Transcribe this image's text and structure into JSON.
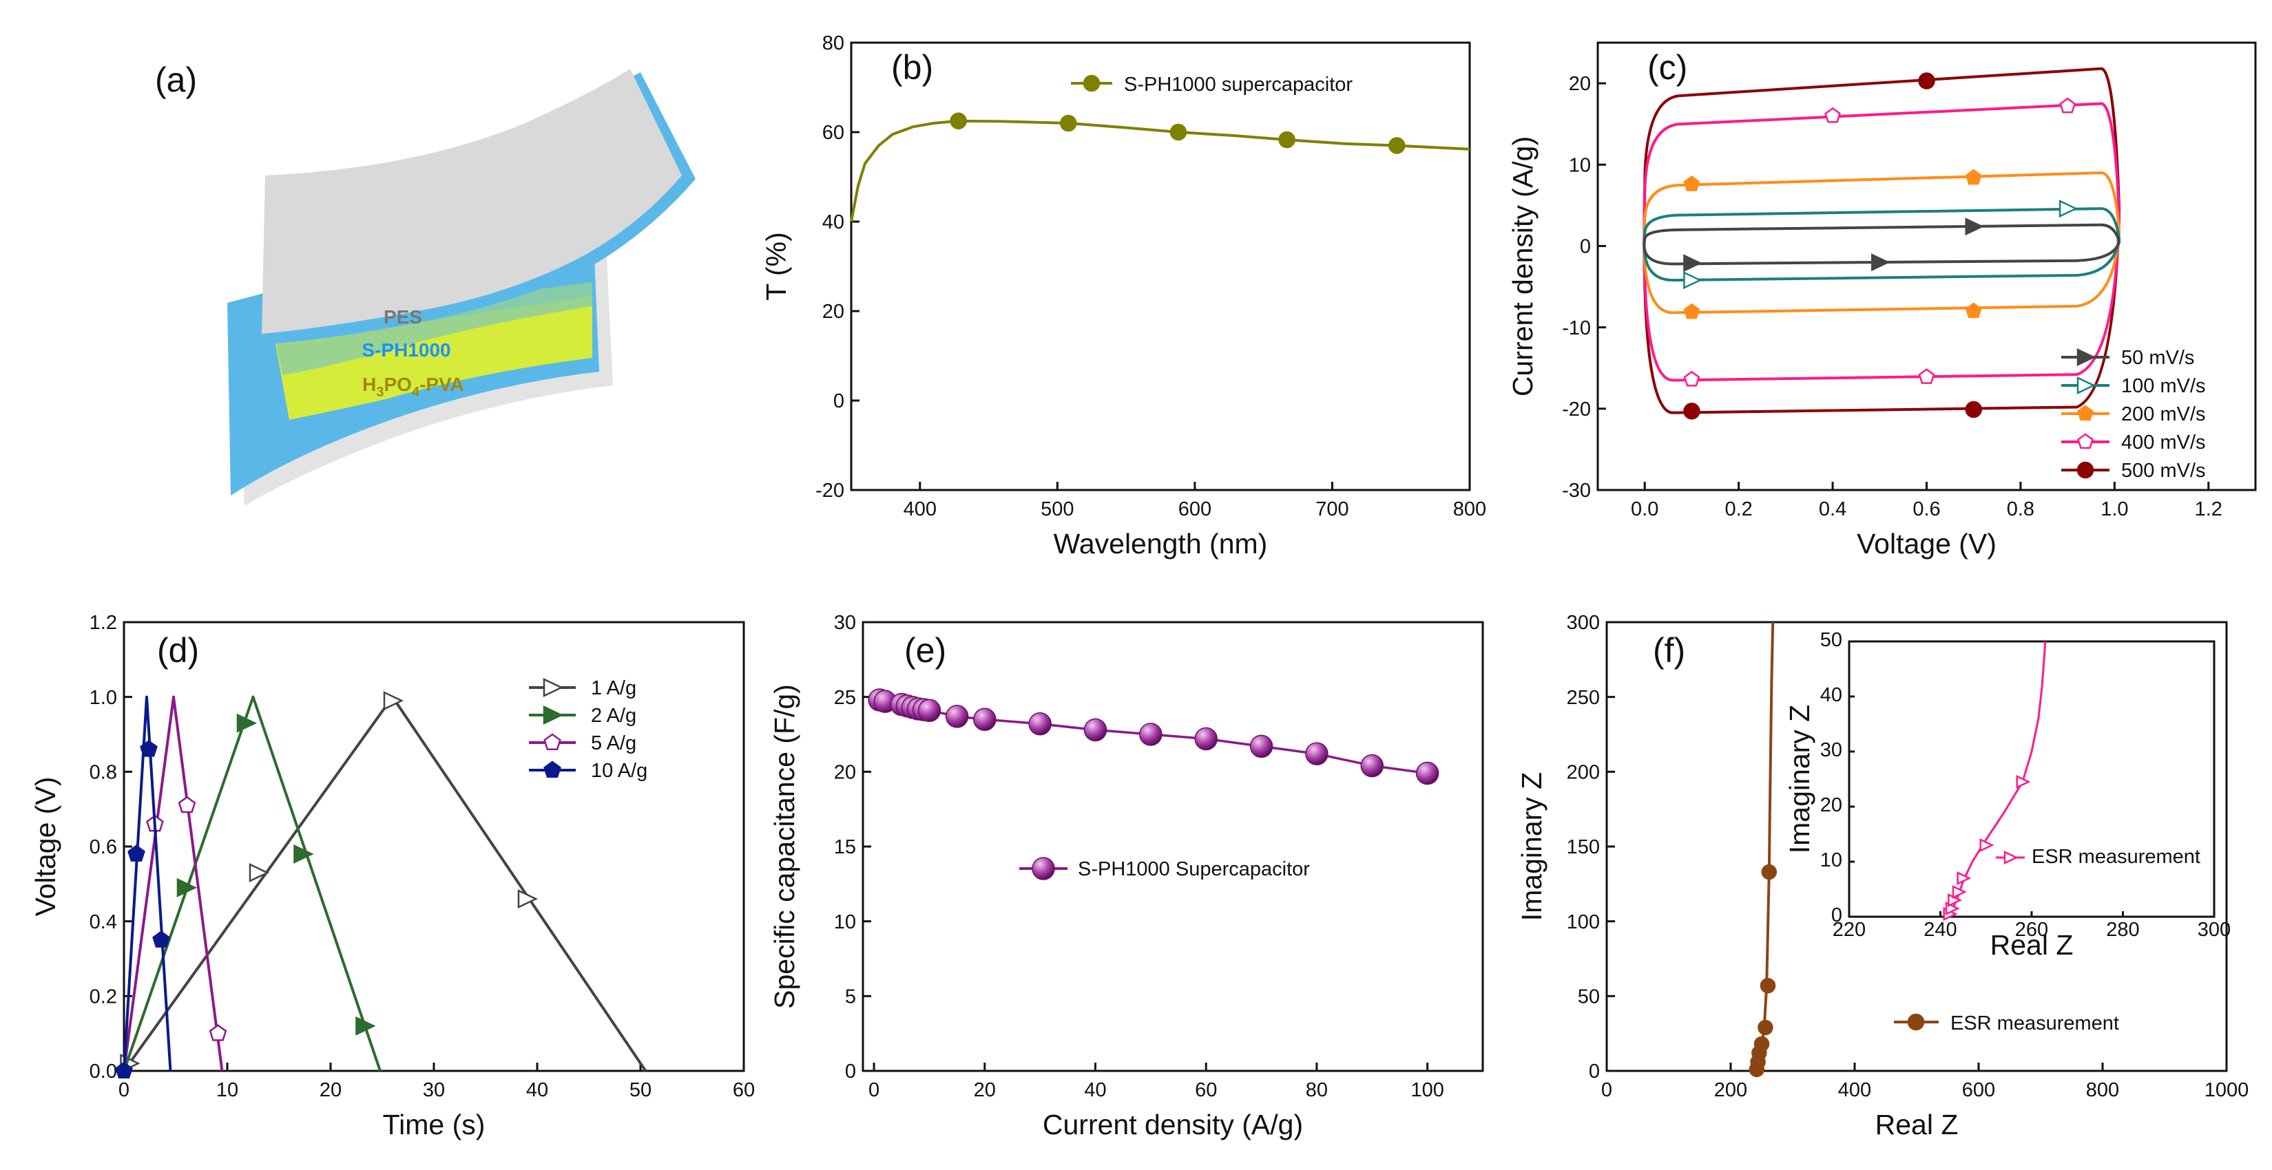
{
  "figure": {
    "panel_a": {
      "label": "(a)",
      "layers": [
        "PES",
        "S-PH1000",
        "H3PO4-PVA"
      ],
      "colors": {
        "pes": "#d9d9d9",
        "sph": "#5ab8e8",
        "elec": "#d6ec3a",
        "sph_text": "#1e90ff",
        "elec_text": "#a08a00",
        "pes_text": "#777777"
      }
    }
  },
  "chart_data": [
    {
      "panel": "b",
      "type": "line",
      "label": "(b)",
      "xlabel": "Wavelength (nm)",
      "ylabel": "T (%)",
      "xlim": [
        350,
        800
      ],
      "ylim": [
        -20,
        80
      ],
      "xticks": [
        400,
        500,
        600,
        700,
        800
      ],
      "yticks": [
        -20,
        0,
        20,
        40,
        60,
        80
      ],
      "legend": {
        "position": "top-right",
        "entries": [
          "S-PH1000 supercapacitor"
        ]
      },
      "series": [
        {
          "name": "S-PH1000 supercapacitor",
          "color": "#808000",
          "marker": "circle",
          "x": [
            350,
            355,
            360,
            370,
            380,
            395,
            410,
            428,
            460,
            508,
            550,
            588,
            630,
            667,
            710,
            747,
            780,
            800
          ],
          "y": [
            40,
            48,
            53,
            57,
            59.5,
            61.2,
            62,
            62.5,
            62.4,
            62,
            61,
            60,
            59.2,
            58.3,
            57.4,
            57,
            56.5,
            56.2
          ],
          "markers_x": [
            428,
            508,
            588,
            667,
            747
          ],
          "markers_y": [
            62.5,
            62,
            60,
            58.3,
            57
          ]
        }
      ]
    },
    {
      "panel": "c",
      "type": "line",
      "label": "(c)",
      "xlabel": "Voltage (V)",
      "ylabel": "Current density (A/g)",
      "xlim": [
        -0.1,
        1.3
      ],
      "ylim": [
        -30,
        25
      ],
      "xticks": [
        0.0,
        0.2,
        0.4,
        0.6,
        0.8,
        1.0,
        1.2
      ],
      "xticklabels": [
        "0.0",
        "0.2",
        "0.4",
        "0.6",
        "0.8",
        "1.0",
        "1.2"
      ],
      "yticks": [
        -30,
        -20,
        -10,
        0,
        10,
        20
      ],
      "legend": {
        "position": "bottom-right",
        "entries": [
          "50 mV/s",
          "100 mV/s",
          "200 mV/s",
          "400 mV/s",
          "500 mV/s"
        ]
      },
      "series": [
        {
          "name": "50 mV/s",
          "color": "#444444",
          "marker": "triangle-right-filled",
          "top": [
            2.0,
            2.6
          ],
          "bottom": [
            -2.2,
            -1.8
          ],
          "markers": [
            [
              0.7,
              2.4
            ],
            [
              0.1,
              -2.1
            ],
            [
              0.5,
              -2.0
            ]
          ]
        },
        {
          "name": "100 mV/s",
          "color": "#1a8080",
          "marker": "triangle-right-open",
          "top": [
            3.8,
            4.6
          ],
          "bottom": [
            -4.2,
            -3.6
          ],
          "markers": [
            [
              0.9,
              4.6
            ],
            [
              0.1,
              -4.2
            ]
          ]
        },
        {
          "name": "200 mV/s",
          "color": "#ff8c1a",
          "marker": "pentagon-filled",
          "top": [
            7.5,
            9.0
          ],
          "bottom": [
            -8.2,
            -7.4
          ],
          "markers": [
            [
              0.1,
              7.6
            ],
            [
              0.7,
              8.4
            ],
            [
              0.1,
              -8.1
            ],
            [
              0.7,
              -8.0
            ]
          ]
        },
        {
          "name": "400 mV/s",
          "color": "#ff1a8c",
          "marker": "pentagon-open",
          "top": [
            15.0,
            17.5
          ],
          "bottom": [
            -16.5,
            -15.8
          ],
          "markers": [
            [
              0.4,
              16.0
            ],
            [
              0.9,
              17.2
            ],
            [
              0.1,
              -16.4
            ],
            [
              0.6,
              -16.1
            ]
          ]
        },
        {
          "name": "500 mV/s",
          "color": "#8b0000",
          "marker": "circle-filled",
          "top": [
            18.5,
            21.8
          ],
          "bottom": [
            -20.5,
            -19.8
          ],
          "markers": [
            [
              0.6,
              20.3
            ],
            [
              0.1,
              -20.3
            ],
            [
              0.7,
              -20.1
            ]
          ]
        }
      ]
    },
    {
      "panel": "d",
      "type": "line",
      "label": "(d)",
      "xlabel": "Time (s)",
      "ylabel": "Voltage (V)",
      "xlim": [
        0,
        60
      ],
      "ylim": [
        0,
        1.2
      ],
      "xticks": [
        0,
        10,
        20,
        30,
        40,
        50,
        60
      ],
      "yticks": [
        0.0,
        0.2,
        0.4,
        0.6,
        0.8,
        1.0,
        1.2
      ],
      "yticklabels": [
        "0.0",
        "0.2",
        "0.4",
        "0.6",
        "0.8",
        "1.0",
        "1.2"
      ],
      "legend": {
        "position": "top-right",
        "entries": [
          "1 A/g",
          "2 A/g",
          "5 A/g",
          "10 A/g"
        ]
      },
      "series": [
        {
          "name": "1 A/g",
          "color": "#444444",
          "marker": "triangle-right-open",
          "x": [
            0,
            26,
            50.5
          ],
          "y": [
            0,
            1.0,
            0
          ],
          "markers_x": [
            0.5,
            13,
            26,
            39
          ],
          "markers_y": [
            0.02,
            0.53,
            0.99,
            0.46
          ]
        },
        {
          "name": "2 A/g",
          "color": "#2e6b2e",
          "marker": "triangle-right-filled",
          "x": [
            0,
            12.5,
            24.8
          ],
          "y": [
            0,
            1.0,
            0
          ],
          "markers_x": [
            6,
            11.8,
            17.3,
            23.3
          ],
          "markers_y": [
            0.49,
            0.93,
            0.58,
            0.12
          ]
        },
        {
          "name": "5 A/g",
          "color": "#8b1a8b",
          "marker": "pentagon-open",
          "x": [
            0,
            4.8,
            9.5
          ],
          "y": [
            0,
            1.0,
            0
          ],
          "markers_x": [
            3,
            6.1,
            9.1
          ],
          "markers_y": [
            0.66,
            0.71,
            0.1
          ]
        },
        {
          "name": "10 A/g",
          "color": "#0a1a8b",
          "marker": "pentagon-filled",
          "x": [
            0,
            2.2,
            4.5
          ],
          "y": [
            0,
            1.0,
            0
          ],
          "markers_x": [
            0,
            1.2,
            2.4,
            3.6
          ],
          "markers_y": [
            0,
            0.58,
            0.86,
            0.35
          ]
        }
      ]
    },
    {
      "panel": "e",
      "type": "line",
      "label": "(e)",
      "xlabel": "Current density (A/g)",
      "ylabel": "Specific capacitance (F/g)",
      "xlim": [
        -2,
        110
      ],
      "ylim": [
        0,
        30
      ],
      "xticks": [
        0,
        20,
        40,
        60,
        80,
        100
      ],
      "yticks": [
        0,
        5,
        10,
        15,
        20,
        25,
        30
      ],
      "legend": {
        "position": "center",
        "entries": [
          "S-PH1000 Supercapacitor"
        ]
      },
      "series": [
        {
          "name": "S-PH1000 Supercapacitor",
          "color": "#8b1a8b",
          "marker": "sphere",
          "x": [
            1,
            2,
            5,
            6,
            7,
            8,
            9,
            10,
            15,
            20,
            30,
            40,
            50,
            60,
            70,
            80,
            90,
            100
          ],
          "y": [
            24.8,
            24.7,
            24.5,
            24.4,
            24.3,
            24.2,
            24.15,
            24.1,
            23.7,
            23.5,
            23.2,
            22.8,
            22.5,
            22.2,
            21.7,
            21.2,
            20.4,
            19.9
          ]
        }
      ]
    },
    {
      "panel": "f",
      "type": "line",
      "label": "(f)",
      "xlabel": "Real Z",
      "ylabel": "Imaginary Z",
      "xlim": [
        0,
        1000
      ],
      "ylim": [
        0,
        300
      ],
      "xticks": [
        0,
        200,
        400,
        600,
        800,
        1000
      ],
      "yticks": [
        0,
        50,
        100,
        150,
        200,
        250,
        300
      ],
      "legend": {
        "position": "bottom-right",
        "entries": [
          "ESR measurement"
        ]
      },
      "series": [
        {
          "name": "ESR measurement",
          "color": "#8b4513",
          "marker": "circle-filled",
          "x": [
            242,
            244,
            246,
            250,
            254,
            258,
            262,
            264,
            266,
            268
          ],
          "y": [
            0,
            5,
            10,
            17,
            28,
            57,
            133,
            200,
            260,
            300
          ],
          "markers_x": [
            242,
            244,
            246,
            250,
            256,
            260,
            262
          ],
          "markers_y": [
            1,
            6,
            12,
            18,
            29,
            57,
            133
          ]
        }
      ],
      "inset": {
        "xlabel": "Real Z",
        "ylabel": "Imaginary Z",
        "xlim": [
          220,
          300
        ],
        "ylim": [
          0,
          50
        ],
        "xticks": [
          220,
          240,
          260,
          280,
          300
        ],
        "yticks": [
          0,
          10,
          20,
          30,
          40,
          50
        ],
        "legend": {
          "position": "center-right",
          "entries": [
            "ESR measurement"
          ]
        },
        "series": [
          {
            "name": "ESR measurement",
            "color": "#ff1a8c",
            "marker": "triangle-right-open",
            "x": [
              242,
              242.5,
              243,
              243.5,
              244,
              245,
              247,
              250,
              254,
              258,
              260,
              261.5,
              262.3,
              263
            ],
            "y": [
              0,
              1,
              2,
              3,
              4,
              6.5,
              10,
              14,
              19,
              24.5,
              30,
              36,
              42,
              50
            ],
            "markers_x": [
              242,
              242.5,
              243,
              244,
              245,
              250,
              258
            ],
            "markers_y": [
              0.5,
              1.5,
              3,
              4.5,
              7,
              13,
              24.5
            ]
          }
        ]
      }
    }
  ]
}
